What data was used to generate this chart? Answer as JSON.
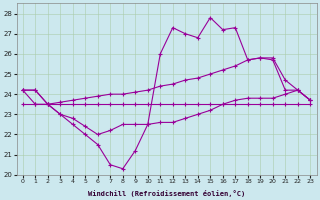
{
  "xlabel": "Windchill (Refroidissement éolien,°C)",
  "background_color": "#cce8ee",
  "grid_color": "#aacccc",
  "line_color": "#990099",
  "xlim_min": -0.5,
  "xlim_max": 23.5,
  "ylim_min": 20.0,
  "ylim_max": 28.5,
  "yticks": [
    20,
    21,
    22,
    23,
    24,
    25,
    26,
    27,
    28
  ],
  "xticks": [
    0,
    1,
    2,
    3,
    4,
    5,
    6,
    7,
    8,
    9,
    10,
    11,
    12,
    13,
    14,
    15,
    16,
    17,
    18,
    19,
    20,
    21,
    22,
    23
  ],
  "line1_y": [
    24.2,
    24.2,
    23.5,
    23.6,
    23.7,
    23.8,
    23.9,
    24.0,
    24.0,
    24.1,
    24.2,
    24.4,
    24.5,
    24.7,
    24.8,
    25.0,
    25.2,
    25.4,
    25.7,
    25.8,
    25.7,
    24.2,
    24.2,
    23.7
  ],
  "line2_y": [
    24.2,
    24.2,
    23.5,
    23.0,
    22.8,
    22.4,
    22.0,
    22.2,
    22.5,
    22.5,
    22.5,
    26.0,
    27.3,
    27.0,
    26.8,
    27.8,
    27.2,
    27.3,
    25.7,
    25.8,
    25.8,
    24.7,
    24.2,
    23.7
  ],
  "line3_y": [
    24.2,
    23.5,
    23.5,
    23.0,
    22.5,
    22.0,
    21.5,
    20.5,
    20.3,
    21.2,
    22.5,
    22.6,
    22.6,
    22.8,
    23.0,
    23.2,
    23.5,
    23.7,
    23.8,
    23.8,
    23.8,
    24.0,
    24.2,
    23.7
  ],
  "line4_y": [
    23.5,
    23.5,
    23.5,
    23.5,
    23.5,
    23.5,
    23.5,
    23.5,
    23.5,
    23.5,
    23.5,
    23.5,
    23.5,
    23.5,
    23.5,
    23.5,
    23.5,
    23.5,
    23.5,
    23.5,
    23.5,
    23.5,
    23.5,
    23.5
  ]
}
